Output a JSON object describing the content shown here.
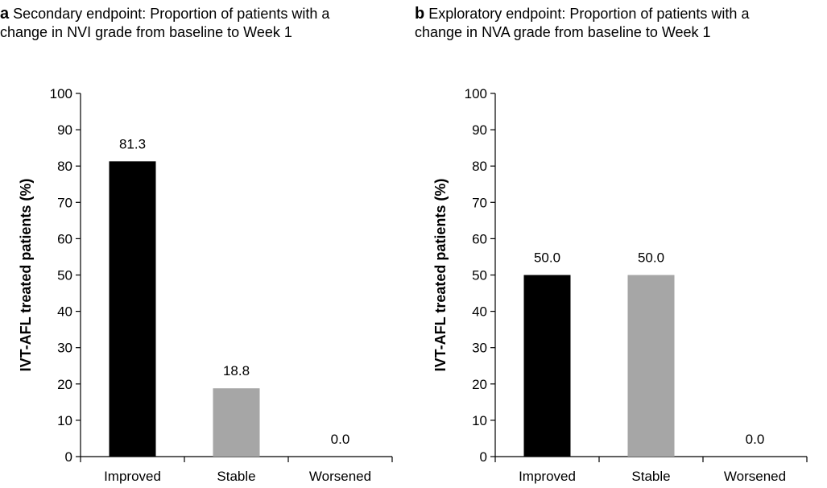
{
  "chart_data": [
    {
      "type": "bar",
      "panel_letter": "a",
      "title": "Secondary endpoint: Proportion of patients with a change in NVI grade from baseline to Week 1",
      "xlabel": "",
      "ylabel": "IVT-AFL treated patients (%)",
      "categories": [
        "Improved",
        "Stable",
        "Worsened"
      ],
      "values": [
        81.3,
        18.8,
        0.0
      ],
      "value_labels": [
        "81.3",
        "18.8",
        "0.0"
      ],
      "colors": [
        "#000000",
        "#a6a6a6",
        "#a6a6a6"
      ],
      "ylim": [
        0,
        100
      ],
      "yticks": [
        0,
        10,
        20,
        30,
        40,
        50,
        60,
        70,
        80,
        90,
        100
      ],
      "grid": false
    },
    {
      "type": "bar",
      "panel_letter": "b",
      "title": "Exploratory endpoint: Proportion of patients with a change in NVA grade from baseline to Week 1",
      "xlabel": "",
      "ylabel": "IVT-AFL treated patients (%)",
      "categories": [
        "Improved",
        "Stable",
        "Worsened"
      ],
      "values": [
        50.0,
        50.0,
        0.0
      ],
      "value_labels": [
        "50.0",
        "50.0",
        "0.0"
      ],
      "colors": [
        "#000000",
        "#a6a6a6",
        "#a6a6a6"
      ],
      "ylim": [
        0,
        100
      ],
      "yticks": [
        0,
        10,
        20,
        30,
        40,
        50,
        60,
        70,
        80,
        90,
        100
      ],
      "grid": false
    }
  ]
}
